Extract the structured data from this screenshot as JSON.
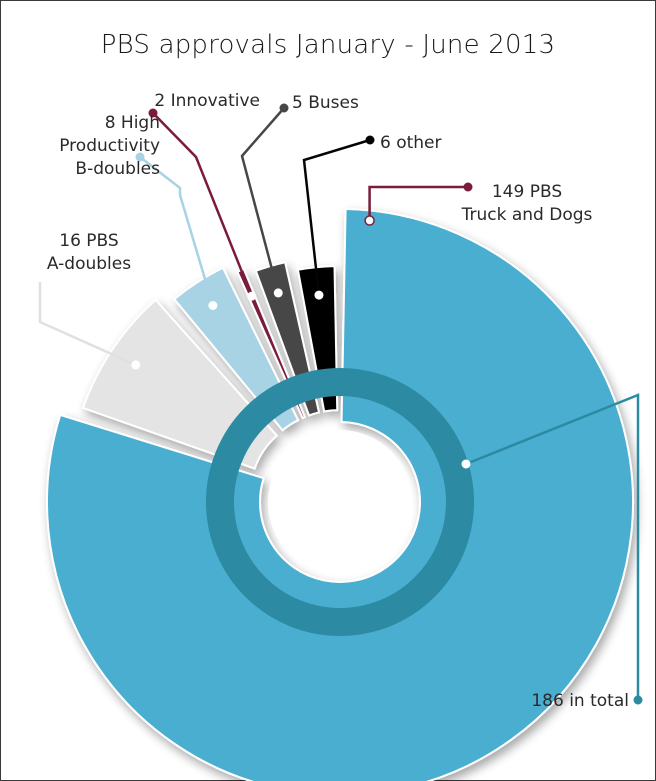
{
  "chart_data": {
    "type": "pie",
    "title": "PBS approvals January - June 2013",
    "categories": [
      "149 PBS Truck and Dogs",
      "16 PBS A-doubles",
      "8 High Productivity B-doubles",
      "2 Innovative",
      "5 Buses",
      "6 other"
    ],
    "values": [
      149,
      16,
      8,
      2,
      5,
      6
    ],
    "colors": [
      "#4aaed0",
      "#e4e4e4",
      "#a8d3e4",
      "#7a1c3a",
      "#474747",
      "#050505"
    ],
    "total": 186,
    "total_label": "186 in total",
    "total_color": "#2c8aa2",
    "labels": [
      {
        "lines": [
          "149 PBS",
          "Truck and Dogs"
        ]
      },
      {
        "lines": [
          "16 PBS",
          "A-doubles"
        ]
      },
      {
        "lines": [
          "8 High",
          "Productivity",
          "B-doubles"
        ]
      },
      {
        "lines": [
          "2 Innovative"
        ]
      },
      {
        "lines": [
          "5 Buses"
        ]
      },
      {
        "lines": [
          "6 other"
        ]
      }
    ]
  }
}
